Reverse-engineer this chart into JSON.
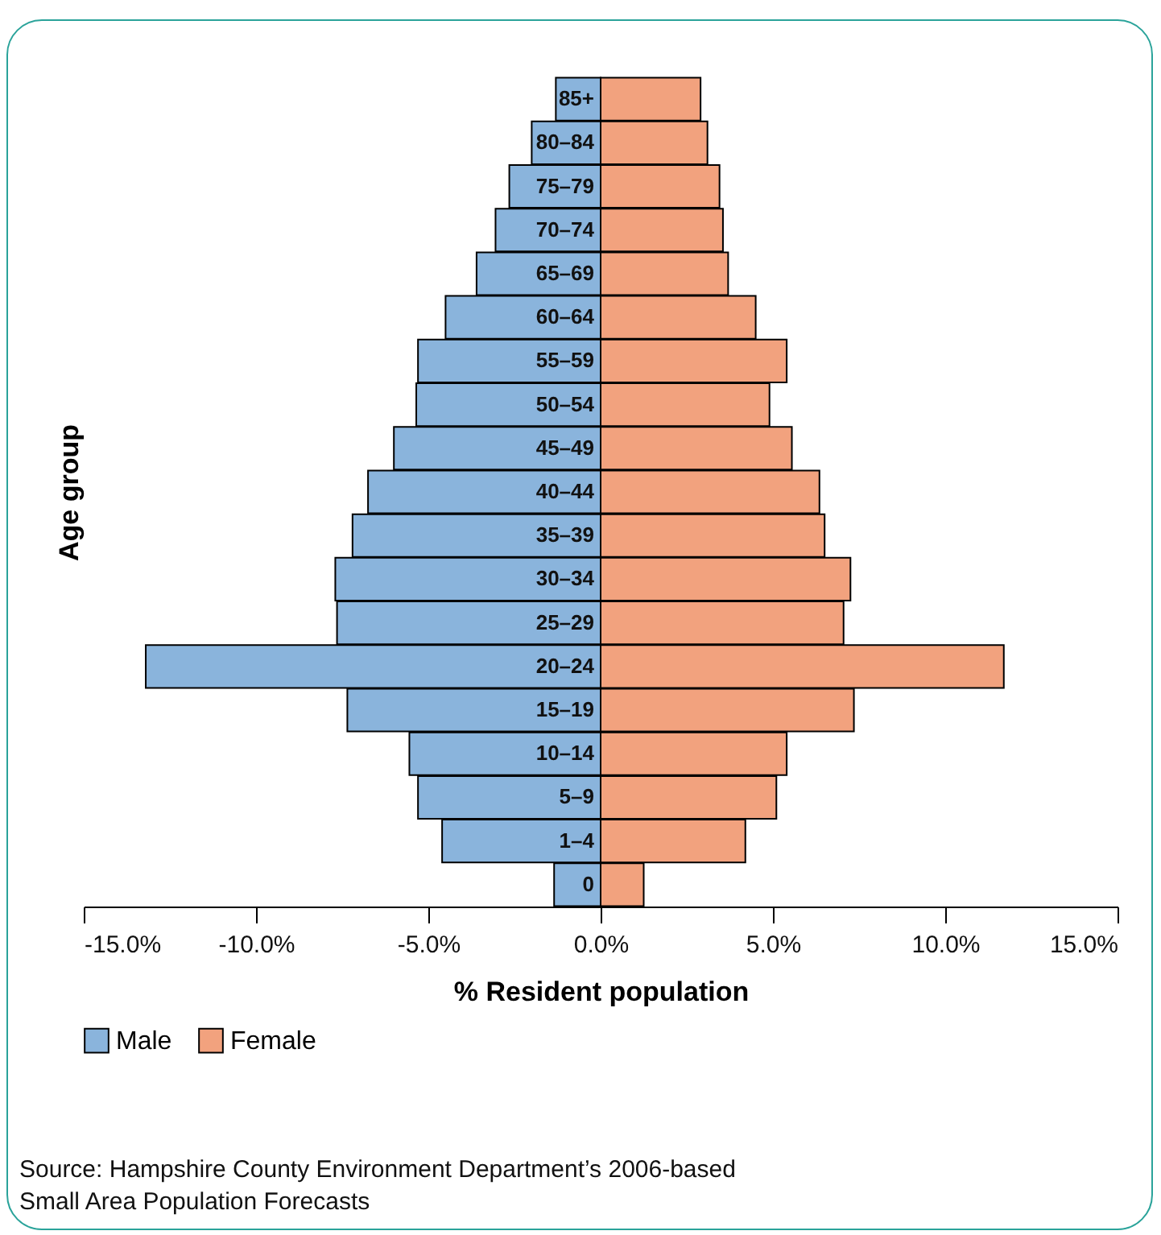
{
  "chart_data": {
    "type": "bar",
    "orientation": "horizontal",
    "xlabel": "% Resident population",
    "ylabel": "Age group",
    "categories": [
      "85+",
      "80–84",
      "75–79",
      "70–74",
      "65–69",
      "60–64",
      "55–59",
      "50–54",
      "45–49",
      "40–44",
      "35–39",
      "30–34",
      "25–29",
      "20–24",
      "15–19",
      "10–14",
      "5–9",
      "1–4",
      "0"
    ],
    "series": [
      {
        "name": "Male",
        "color": "#8ab4dc",
        "values": [
          -1.3,
          -2.0,
          -2.65,
          -3.05,
          -3.6,
          -4.5,
          -5.3,
          -5.35,
          -6.0,
          -6.75,
          -7.2,
          -7.7,
          -7.65,
          -13.2,
          -7.35,
          -5.55,
          -5.3,
          -4.6,
          -1.35
        ]
      },
      {
        "name": "Female",
        "color": "#f2a27e",
        "values": [
          2.9,
          3.1,
          3.45,
          3.55,
          3.7,
          4.5,
          5.4,
          4.9,
          5.55,
          6.35,
          6.5,
          7.25,
          7.05,
          11.7,
          7.35,
          5.4,
          5.1,
          4.2,
          1.25
        ]
      }
    ],
    "xlim": [
      -15,
      15
    ],
    "xticks": [
      {
        "value": -15,
        "label": "-15.0%"
      },
      {
        "value": -10,
        "label": "-10.0%"
      },
      {
        "value": -5,
        "label": "-5.0%"
      },
      {
        "value": 0,
        "label": "0.0%"
      },
      {
        "value": 5,
        "label": "5.0%"
      },
      {
        "value": 10,
        "label": "10.0%"
      },
      {
        "value": 15,
        "label": "15.0%"
      }
    ],
    "legend": "bottom",
    "grid": false,
    "stacked": true,
    "annotations": [
      "Source: Hampshire County Environment Department’s 2006-based Small Area Population Forecasts"
    ]
  }
}
